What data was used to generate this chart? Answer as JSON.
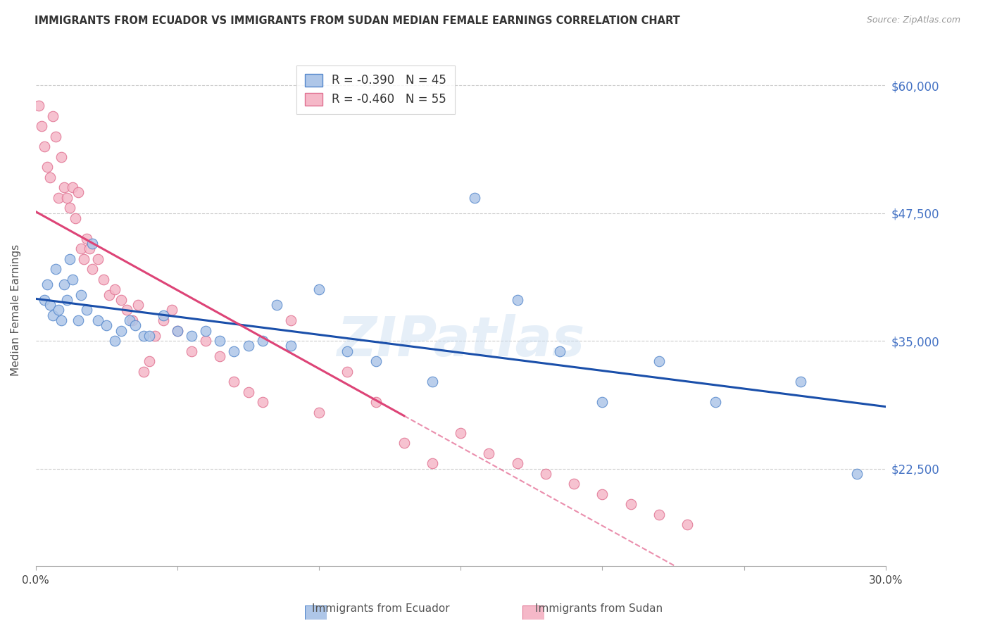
{
  "title": "IMMIGRANTS FROM ECUADOR VS IMMIGRANTS FROM SUDAN MEDIAN FEMALE EARNINGS CORRELATION CHART",
  "source": "Source: ZipAtlas.com",
  "ylabel": "Median Female Earnings",
  "xlim": [
    0.0,
    0.3
  ],
  "ylim": [
    13000,
    63000
  ],
  "xticks": [
    0.0,
    0.05,
    0.1,
    0.15,
    0.2,
    0.25,
    0.3
  ],
  "xtick_labels": [
    "0.0%",
    "",
    "",
    "",
    "",
    "",
    "30.0%"
  ],
  "yticks": [
    22500,
    35000,
    47500,
    60000
  ],
  "ytick_labels": [
    "$22,500",
    "$35,000",
    "$47,500",
    "$60,000"
  ],
  "ecuador_color": "#aec6e8",
  "ecuador_edge": "#5588cc",
  "sudan_color": "#f5b8c8",
  "sudan_edge": "#e07090",
  "trendline_ecuador_color": "#1a4faa",
  "trendline_sudan_color": "#dd4477",
  "ecuador_R": -0.39,
  "ecuador_N": 45,
  "sudan_R": -0.46,
  "sudan_N": 55,
  "watermark": "ZIPatlas",
  "legend_label_ecuador": "Immigrants from Ecuador",
  "legend_label_sudan": "Immigrants from Sudan",
  "ecuador_x": [
    0.003,
    0.004,
    0.005,
    0.006,
    0.007,
    0.008,
    0.009,
    0.01,
    0.011,
    0.012,
    0.013,
    0.015,
    0.016,
    0.018,
    0.02,
    0.022,
    0.025,
    0.028,
    0.03,
    0.033,
    0.035,
    0.038,
    0.04,
    0.045,
    0.05,
    0.055,
    0.06,
    0.065,
    0.07,
    0.075,
    0.08,
    0.085,
    0.09,
    0.1,
    0.11,
    0.12,
    0.14,
    0.155,
    0.17,
    0.185,
    0.2,
    0.22,
    0.24,
    0.27,
    0.29
  ],
  "ecuador_y": [
    39000,
    40500,
    38500,
    37500,
    42000,
    38000,
    37000,
    40500,
    39000,
    43000,
    41000,
    37000,
    39500,
    38000,
    44500,
    37000,
    36500,
    35000,
    36000,
    37000,
    36500,
    35500,
    35500,
    37500,
    36000,
    35500,
    36000,
    35000,
    34000,
    34500,
    35000,
    38500,
    34500,
    40000,
    34000,
    33000,
    31000,
    49000,
    39000,
    34000,
    29000,
    33000,
    29000,
    31000,
    22000
  ],
  "sudan_x": [
    0.001,
    0.002,
    0.003,
    0.004,
    0.005,
    0.006,
    0.007,
    0.008,
    0.009,
    0.01,
    0.011,
    0.012,
    0.013,
    0.014,
    0.015,
    0.016,
    0.017,
    0.018,
    0.019,
    0.02,
    0.022,
    0.024,
    0.026,
    0.028,
    0.03,
    0.032,
    0.034,
    0.036,
    0.038,
    0.04,
    0.042,
    0.045,
    0.048,
    0.05,
    0.055,
    0.06,
    0.065,
    0.07,
    0.075,
    0.08,
    0.09,
    0.1,
    0.11,
    0.12,
    0.13,
    0.14,
    0.15,
    0.16,
    0.17,
    0.18,
    0.19,
    0.2,
    0.21,
    0.22,
    0.23
  ],
  "sudan_y": [
    58000,
    56000,
    54000,
    52000,
    51000,
    57000,
    55000,
    49000,
    53000,
    50000,
    49000,
    48000,
    50000,
    47000,
    49500,
    44000,
    43000,
    45000,
    44000,
    42000,
    43000,
    41000,
    39500,
    40000,
    39000,
    38000,
    37000,
    38500,
    32000,
    33000,
    35500,
    37000,
    38000,
    36000,
    34000,
    35000,
    33500,
    31000,
    30000,
    29000,
    37000,
    28000,
    32000,
    29000,
    25000,
    23000,
    26000,
    24000,
    23000,
    22000,
    21000,
    20000,
    19000,
    18000,
    17000
  ]
}
